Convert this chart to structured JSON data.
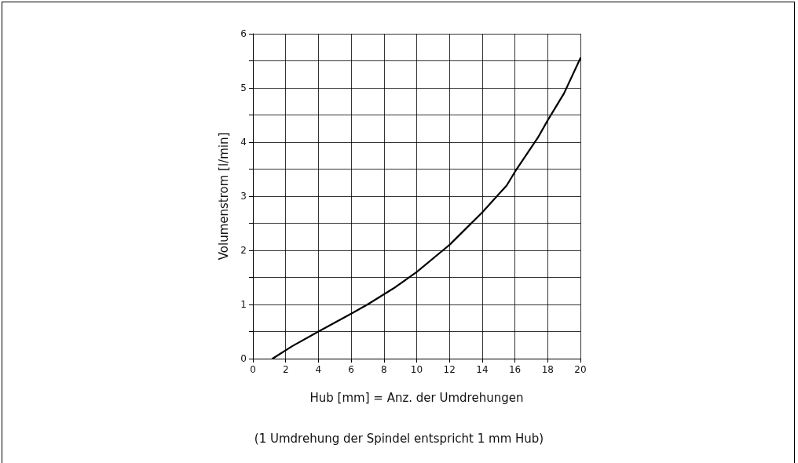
{
  "chart_data": {
    "type": "line",
    "xlabel": "Hub [mm] = Anz. der Umdrehungen",
    "ylabel": "Volumenstrom [l/min]",
    "annotations": [
      "(1 Umdrehung der Spindel entspricht 1 mm Hub)"
    ],
    "series": [
      {
        "color": "#000000",
        "x": [
          1.2,
          2.4,
          4,
          6,
          7,
          8.6,
          10,
          11.6,
          12,
          14,
          15.5,
          16,
          17.4,
          18,
          19,
          20
        ],
        "values": [
          0,
          0.23,
          0.5,
          0.83,
          1.0,
          1.3,
          1.6,
          2.0,
          2.1,
          2.7,
          3.2,
          3.45,
          4.08,
          4.4,
          4.9,
          5.55
        ]
      }
    ],
    "xlim": [
      0,
      20
    ],
    "xticks": [
      0,
      2,
      4,
      6,
      8,
      10,
      12,
      14,
      16,
      18,
      20
    ],
    "ylim": [
      0,
      6
    ],
    "yticks": [
      0,
      {
        "value": 0.5,
        "label": null
      },
      1,
      {
        "value": 1.5,
        "label": null
      },
      2,
      {
        "value": 2.5,
        "label": null
      },
      3,
      {
        "value": 3.5,
        "label": null
      },
      4,
      {
        "value": 4.5,
        "label": null
      },
      5,
      {
        "value": 5.5,
        "label": null
      },
      6
    ],
    "grid": true,
    "marker": "none",
    "line_style": "solid"
  }
}
